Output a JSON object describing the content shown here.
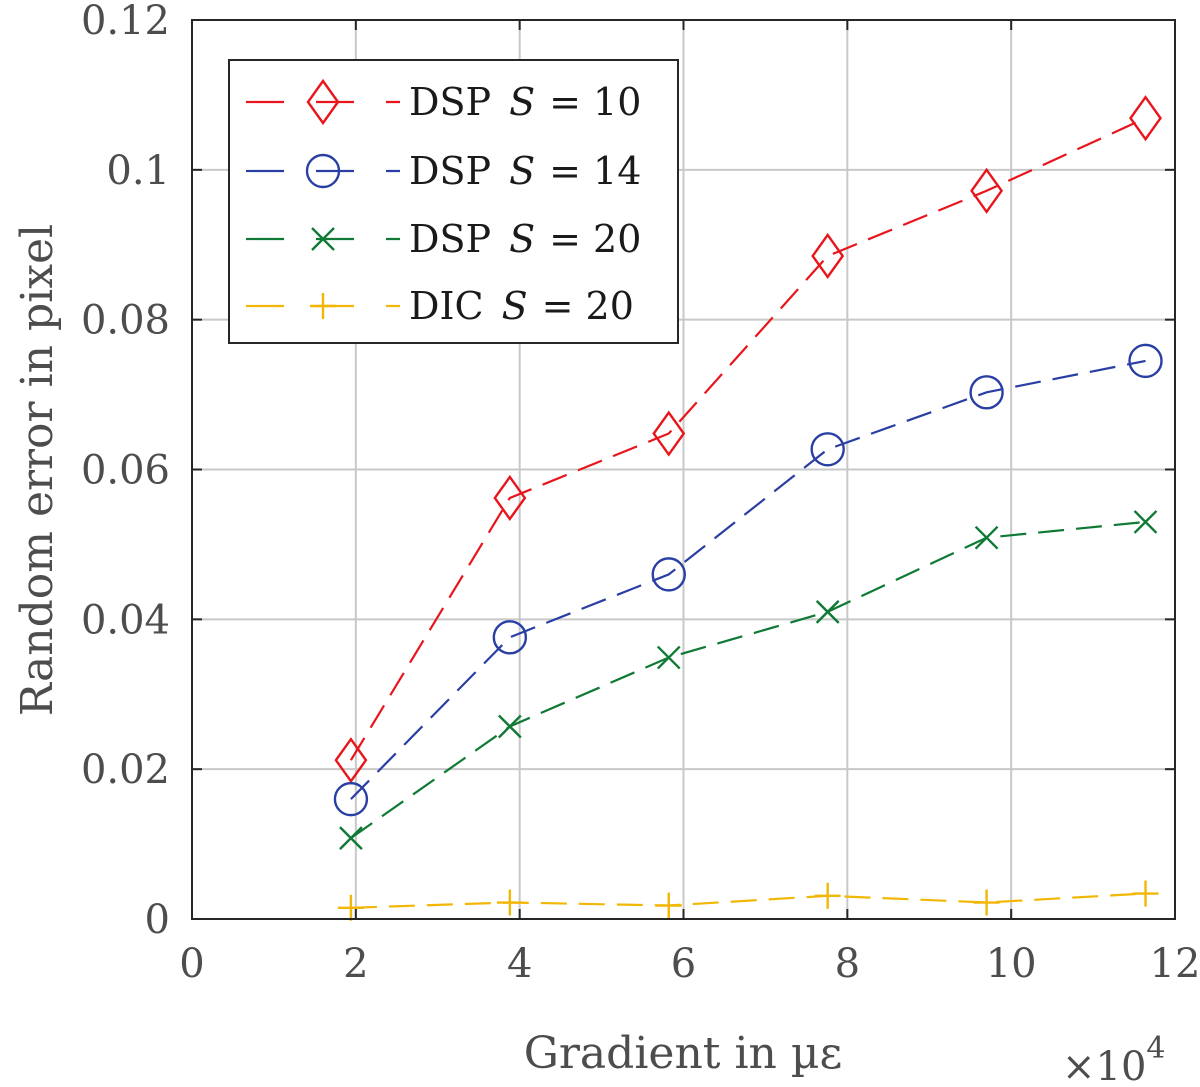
{
  "chart_data": {
    "type": "line",
    "title": "",
    "xlabel": "Gradient in µε",
    "ylabel": "Random error in pixel",
    "x_multiplier_base": "×10",
    "x_multiplier_exp": "4",
    "xlim": [
      0,
      12
    ],
    "ylim": [
      0,
      0.12
    ],
    "xticks": [
      0,
      2,
      4,
      6,
      8,
      10,
      12
    ],
    "yticks": [
      0,
      0.02,
      0.04,
      0.06,
      0.08,
      0.1,
      0.12
    ],
    "xtick_labels": [
      "0",
      "2",
      "4",
      "6",
      "8",
      "10",
      "12"
    ],
    "ytick_labels": [
      "0",
      "0.02",
      "0.04",
      "0.06",
      "0.08",
      "0.1",
      "0.12"
    ],
    "grid": true,
    "legend_position": "top-left",
    "x": [
      1.94,
      3.88,
      5.82,
      7.76,
      9.7,
      11.64
    ],
    "series": [
      {
        "name": "DSP S = 10",
        "method": "DSP",
        "var": "S",
        "eq": "= 10",
        "marker": "diamond",
        "color": "#e8161c",
        "values": [
          0.0212,
          0.0562,
          0.0648,
          0.0885,
          0.0972,
          0.1069
        ]
      },
      {
        "name": "DSP S = 14",
        "method": "DSP",
        "var": "S",
        "eq": "= 14",
        "marker": "circle",
        "color": "#2a3fa3",
        "values": [
          0.016,
          0.0376,
          0.046,
          0.0627,
          0.0703,
          0.0745
        ]
      },
      {
        "name": "DSP S = 20",
        "method": "DSP",
        "var": "S",
        "eq": "= 20",
        "marker": "x",
        "color": "#0f7a35",
        "values": [
          0.0108,
          0.0257,
          0.0349,
          0.041,
          0.0509,
          0.053
        ]
      },
      {
        "name": "DIC S = 20",
        "method": "DIC",
        "var": "S",
        "eq": "= 20",
        "marker": "plus",
        "color": "#f2b705",
        "values": [
          0.0015,
          0.0022,
          0.0018,
          0.0031,
          0.0022,
          0.0034
        ]
      }
    ]
  }
}
